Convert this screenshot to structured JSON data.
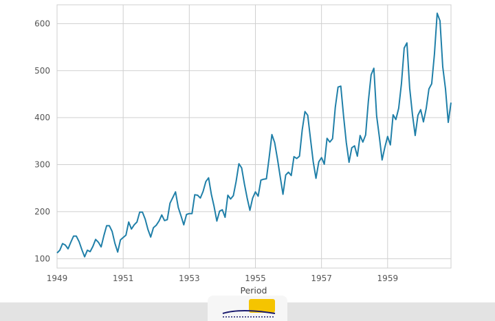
{
  "chart_data": {
    "type": "line",
    "xlabel": "Period",
    "ylabel": "",
    "title": "",
    "ylim": [
      80,
      640
    ],
    "xlim": [
      1949,
      1960.917
    ],
    "x_ticks": [
      1949,
      1951,
      1953,
      1955,
      1957,
      1959
    ],
    "y_ticks": [
      100,
      200,
      300,
      400,
      500,
      600
    ],
    "grid": true,
    "legend": "none",
    "line_color": "#1f7fa8",
    "x_start": "1949-01",
    "x_step": "1 month",
    "series": [
      {
        "values": [
          112,
          118,
          132,
          129,
          121,
          135,
          148,
          148,
          136,
          119,
          104,
          118,
          115,
          126,
          141,
          135,
          125,
          149,
          170,
          170,
          158,
          133,
          114,
          140,
          145,
          150,
          178,
          163,
          172,
          178,
          199,
          199,
          184,
          162,
          146,
          166,
          171,
          180,
          193,
          181,
          183,
          218,
          230,
          242,
          209,
          191,
          172,
          194,
          196,
          196,
          236,
          235,
          229,
          243,
          264,
          272,
          237,
          211,
          180,
          201,
          204,
          188,
          235,
          227,
          234,
          264,
          302,
          293,
          259,
          229,
          203,
          229,
          242,
          233,
          267,
          269,
          270,
          315,
          364,
          347,
          312,
          274,
          237,
          278,
          284,
          277,
          317,
          313,
          318,
          374,
          413,
          405,
          355,
          306,
          271,
          306,
          315,
          301,
          356,
          348,
          355,
          422,
          465,
          467,
          404,
          347,
          305,
          336,
          340,
          318,
          362,
          348,
          363,
          435,
          491,
          505,
          404,
          359,
          310,
          337,
          360,
          342,
          406,
          396,
          420,
          472,
          548,
          559,
          463,
          407,
          362,
          405,
          417,
          391,
          419,
          461,
          472,
          535,
          622,
          606,
          508,
          461,
          390,
          432
        ]
      }
    ]
  },
  "x_tick_labels": [
    "1949",
    "1951",
    "1953",
    "1955",
    "1957",
    "1959"
  ],
  "y_tick_labels": [
    "100",
    "200",
    "300",
    "400",
    "500",
    "600"
  ],
  "watermark": {
    "text": "کاروکاری",
    "accent": "#f5c400",
    "text_color": "#1a1a6e"
  }
}
